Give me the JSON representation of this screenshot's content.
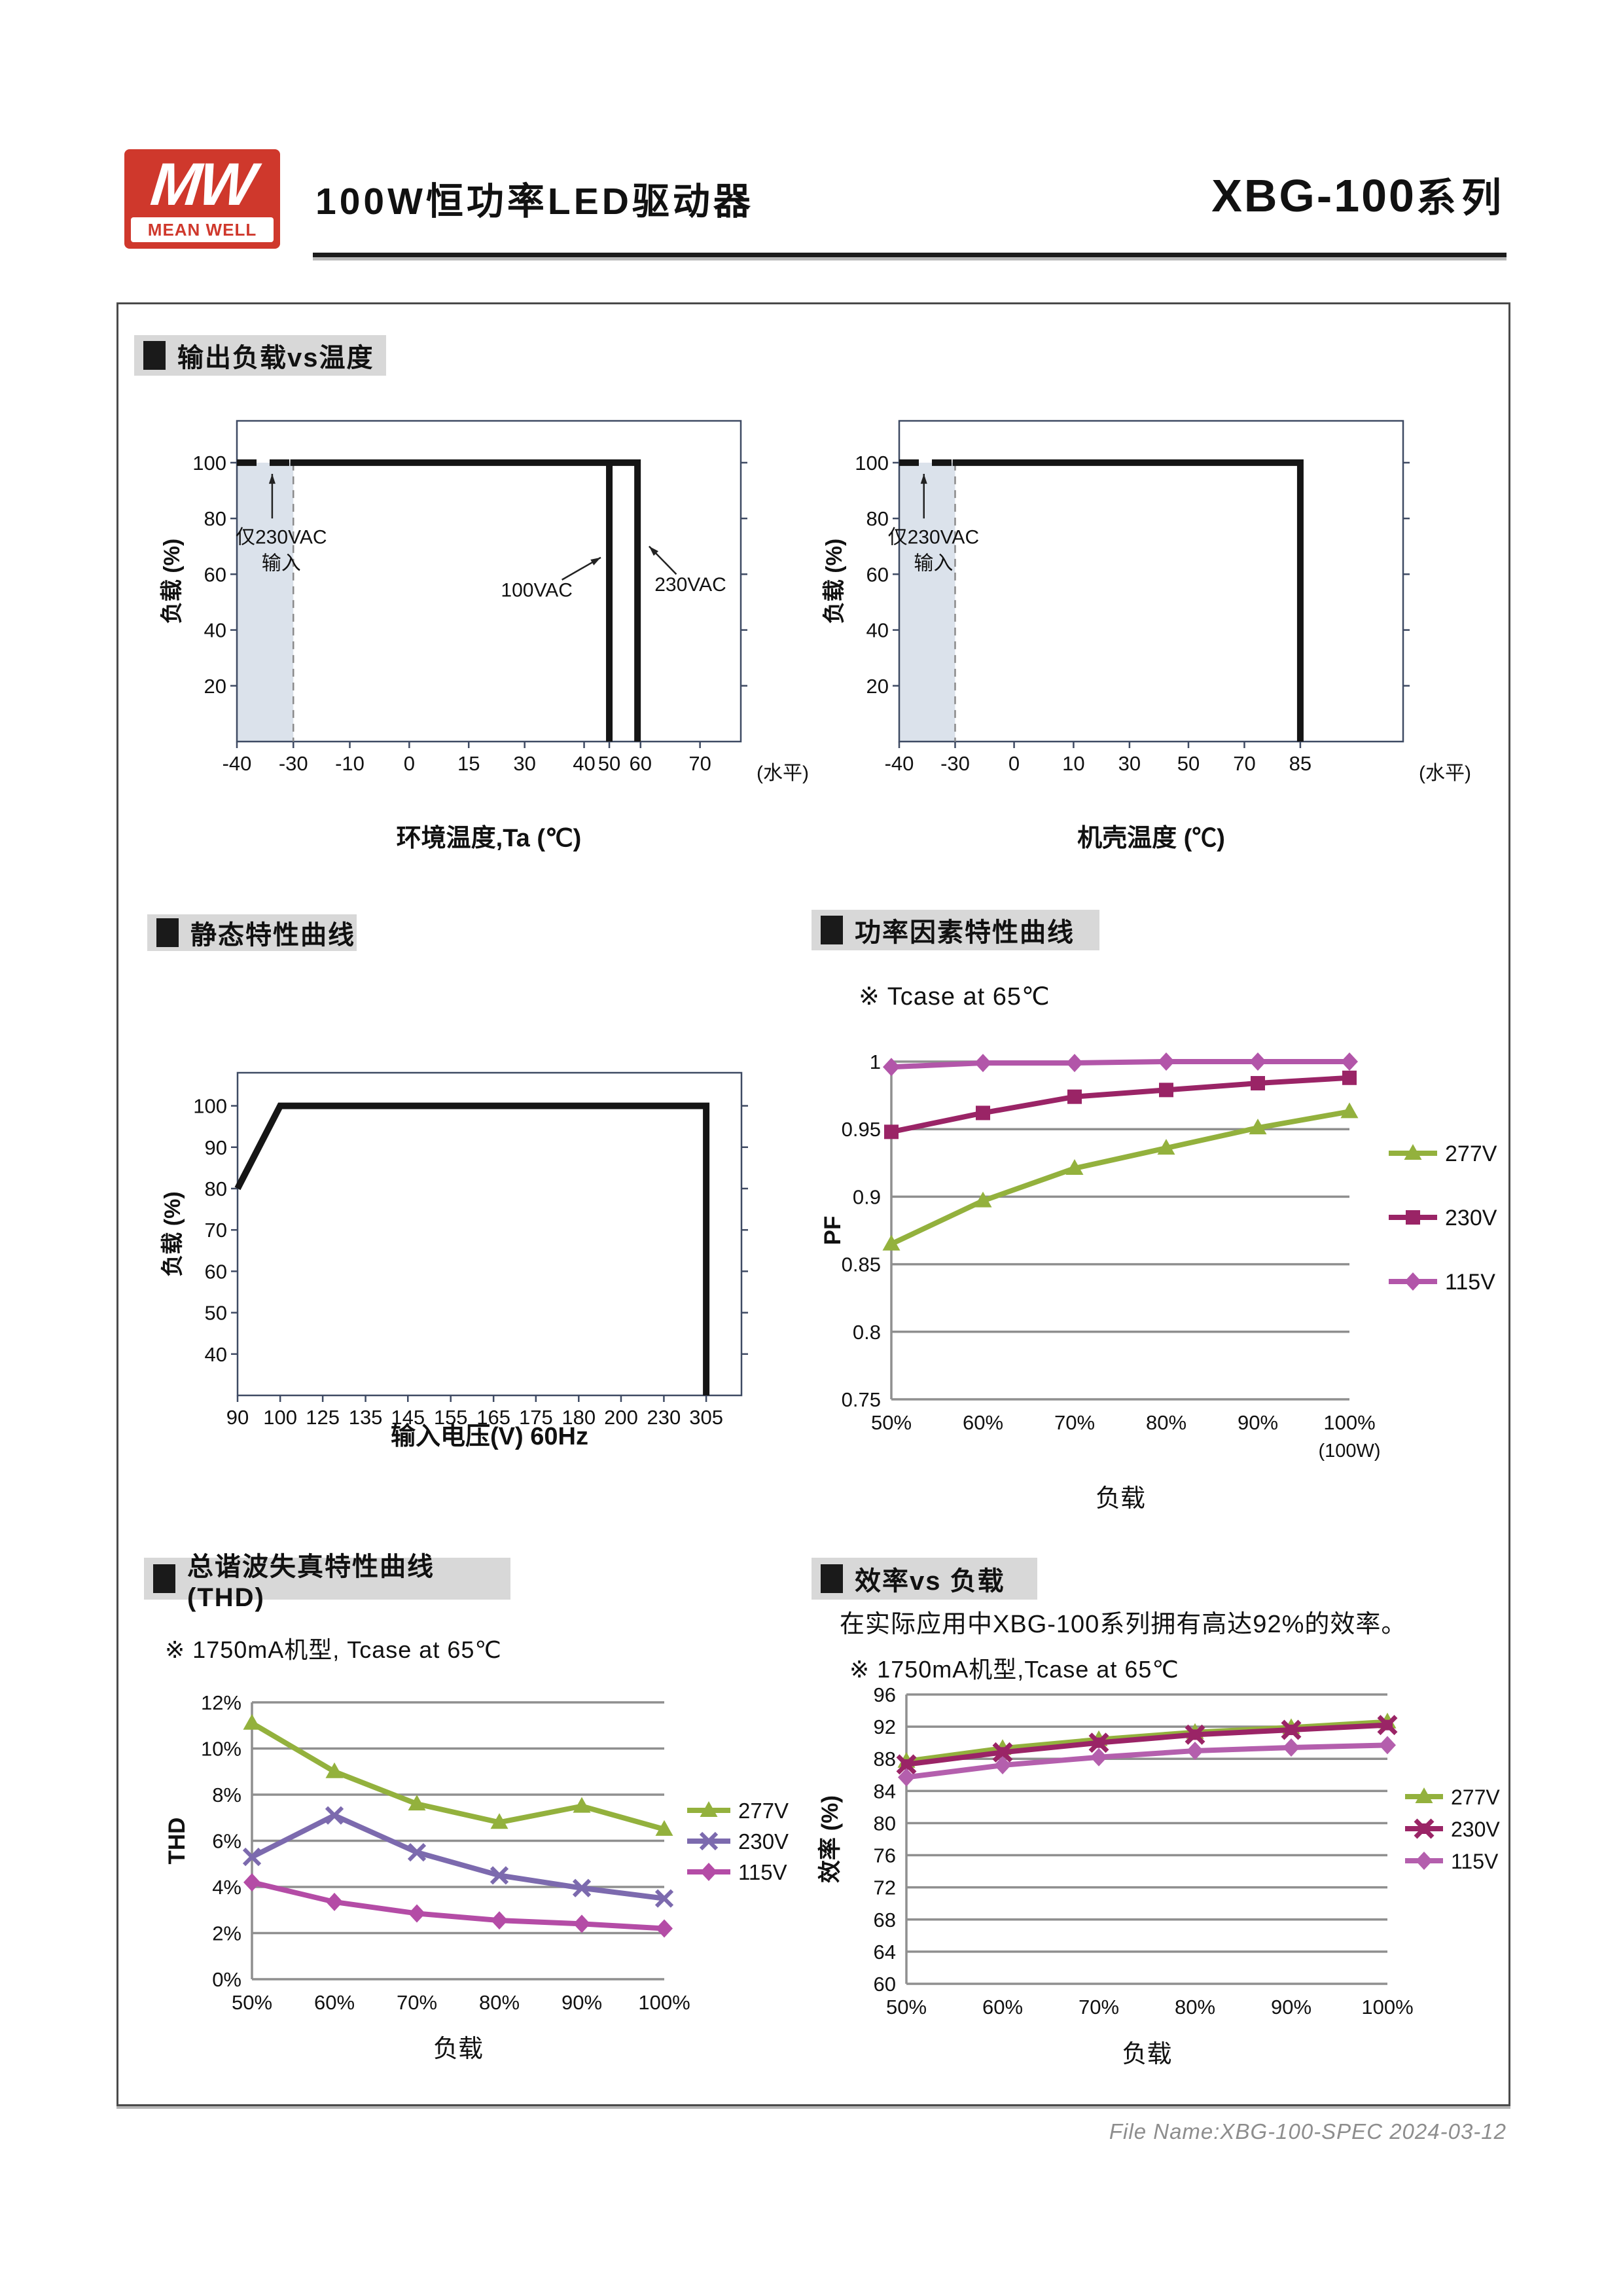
{
  "header": {
    "logo_mw": "MW",
    "logo_brand": "MEAN WELL",
    "title": "100W恒功率LED驱动器",
    "series": "XBG-100",
    "series_suffix": "系列"
  },
  "sections": [
    {
      "label": "输出负载vs温度"
    },
    {
      "label": "静态特性曲线"
    },
    {
      "label": "功率因素特性曲线"
    },
    {
      "label": "总谐波失真特性曲线(THD)"
    },
    {
      "label": "效率vs 负载"
    }
  ],
  "notes": {
    "pf": "※ Tcase at 65℃",
    "thd": "※ 1750mA机型, Tcase at 65℃",
    "eff_intro": "在实际应用中XBG-100系列拥有高达92%的效率。",
    "eff": "※ 1750mA机型,Tcase at 65℃"
  },
  "footer": {
    "file_name": "File Name:XBG-100-SPEC 2024-03-12"
  },
  "chart_data": [
    {
      "id": "load-vs-ambient-temperature",
      "type": "line",
      "kind": "derating",
      "xlabel": "环境温度,Ta (℃)",
      "ylabel": "负载 (%)",
      "axis_note": "(水平)",
      "ylim": [
        0,
        115
      ],
      "yticks": [
        20,
        40,
        60,
        80,
        100
      ],
      "xticks": [
        {
          "label": "-40",
          "pos": 0
        },
        {
          "label": "-30",
          "pos": 0.112
        },
        {
          "label": "-10",
          "pos": 0.224
        },
        {
          "label": "0",
          "pos": 0.342
        },
        {
          "label": "15",
          "pos": 0.46
        },
        {
          "label": "30",
          "pos": 0.571
        },
        {
          "label": "40",
          "pos": 0.689
        },
        {
          "label": "50",
          "pos": 0.739
        },
        {
          "label": "60",
          "pos": 0.801
        },
        {
          "label": "70",
          "pos": 0.919
        }
      ],
      "shade": [
        0,
        0.112
      ],
      "dash_vline": 0.112,
      "segments": [
        {
          "dash": true,
          "pts": [
            [
              0,
              100
            ],
            [
              0.112,
              100
            ]
          ]
        },
        {
          "dash": false,
          "pts": [
            [
              0.106,
              100
            ],
            [
              0.795,
              100
            ],
            [
              0.795,
              0
            ]
          ]
        },
        {
          "dash": false,
          "pts": [
            [
              0.739,
              100
            ],
            [
              0.739,
              0
            ]
          ]
        }
      ],
      "annotations": [
        {
          "lines": [
            "仅230VAC",
            "输入"
          ],
          "fx": 0.088,
          "fy": 71,
          "arrow": {
            "from": [
              0.07,
              80
            ],
            "to": [
              0.07,
              96
            ]
          }
        },
        {
          "lines": [
            "100VAC"
          ],
          "fx": 0.595,
          "fy": 52,
          "arrow": {
            "from": [
              0.645,
              58
            ],
            "to": [
              0.722,
              66
            ]
          }
        },
        {
          "lines": [
            "230VAC"
          ],
          "fx": 0.9,
          "fy": 54,
          "arrow": {
            "from": [
              0.872,
              60
            ],
            "to": [
              0.818,
              70
            ]
          }
        }
      ],
      "colors": {
        "line": "#151515",
        "frame": "#3e4a63",
        "shade": "#dbe2eb"
      }
    },
    {
      "id": "load-vs-case-temperature",
      "type": "line",
      "kind": "derating",
      "xlabel": "机壳温度 (℃)",
      "ylabel": "负载 (%)",
      "axis_note": "(水平)",
      "ylim": [
        0,
        115
      ],
      "yticks": [
        20,
        40,
        60,
        80,
        100
      ],
      "xticks": [
        {
          "label": "-40",
          "pos": 0
        },
        {
          "label": "-30",
          "pos": 0.111
        },
        {
          "label": "0",
          "pos": 0.228
        },
        {
          "label": "10",
          "pos": 0.346
        },
        {
          "label": "30",
          "pos": 0.457
        },
        {
          "label": "50",
          "pos": 0.574
        },
        {
          "label": "70",
          "pos": 0.685
        },
        {
          "label": "85",
          "pos": 0.796
        }
      ],
      "shade": [
        0,
        0.111
      ],
      "dash_vline": 0.111,
      "segments": [
        {
          "dash": true,
          "pts": [
            [
              0,
              100
            ],
            [
              0.111,
              100
            ]
          ]
        },
        {
          "dash": false,
          "pts": [
            [
              0.106,
              100
            ],
            [
              0.796,
              100
            ],
            [
              0.796,
              0
            ]
          ]
        }
      ],
      "annotations": [
        {
          "lines": [
            "仅230VAC",
            "输入"
          ],
          "fx": 0.068,
          "fy": 71,
          "arrow": {
            "from": [
              0.049,
              80
            ],
            "to": [
              0.049,
              96
            ]
          }
        }
      ],
      "colors": {
        "line": "#151515",
        "frame": "#3e4a63",
        "shade": "#dbe2eb"
      }
    },
    {
      "id": "static-characteristic",
      "type": "line",
      "kind": "derating",
      "xlabel": "输入电压(V) 60Hz",
      "ylabel": "负载 (%)",
      "ylim": [
        30,
        108
      ],
      "yticks": [
        40,
        50,
        60,
        70,
        80,
        90,
        100
      ],
      "xticks": [
        {
          "label": "90",
          "pos": 0
        },
        {
          "label": "100",
          "pos": 0.0846
        },
        {
          "label": "125",
          "pos": 0.169
        },
        {
          "label": "135",
          "pos": 0.254
        },
        {
          "label": "145",
          "pos": 0.338
        },
        {
          "label": "155",
          "pos": 0.423
        },
        {
          "label": "165",
          "pos": 0.508
        },
        {
          "label": "175",
          "pos": 0.592
        },
        {
          "label": "180",
          "pos": 0.677
        },
        {
          "label": "200",
          "pos": 0.761
        },
        {
          "label": "230",
          "pos": 0.846
        },
        {
          "label": "305",
          "pos": 0.93
        }
      ],
      "segments": [
        {
          "dash": false,
          "pts": [
            [
              0,
              80
            ],
            [
              0.0846,
              100
            ],
            [
              0.93,
              100
            ],
            [
              0.93,
              30
            ]
          ]
        }
      ],
      "annotations": [],
      "colors": {
        "line": "#151515",
        "frame": "#3e4a63",
        "shade": "#dbe2eb"
      }
    },
    {
      "id": "power-factor-vs-load",
      "type": "line",
      "kind": "series",
      "xlabel": "负载",
      "ylabel": "PF",
      "categories": [
        "50%",
        "60%",
        "70%",
        "80%",
        "90%",
        "100%"
      ],
      "cat_note": {
        "index": 5,
        "text": "(100W)"
      },
      "ylim": [
        0.75,
        1.0
      ],
      "yticks": [
        0.75,
        0.8,
        0.85,
        0.9,
        0.95,
        1
      ],
      "ytick_labels": [
        "0.75",
        "0.8",
        "0.85",
        "0.9",
        "0.95",
        "1"
      ],
      "series": [
        {
          "name": "277V",
          "marker": "triangle",
          "color": "#93B13D",
          "values": [
            0.865,
            0.897,
            0.921,
            0.936,
            0.951,
            0.963
          ]
        },
        {
          "name": "230V",
          "marker": "square",
          "color": "#9A2466",
          "values": [
            0.948,
            0.962,
            0.974,
            0.979,
            0.984,
            0.988
          ]
        },
        {
          "name": "115V",
          "marker": "diamond",
          "color": "#B256A9",
          "values": [
            0.996,
            0.999,
            0.999,
            1,
            1,
            1
          ]
        }
      ],
      "legend_position": "right"
    },
    {
      "id": "thd-vs-load",
      "type": "line",
      "kind": "series",
      "xlabel": "负载",
      "ylabel": "THD",
      "categories": [
        "50%",
        "60%",
        "70%",
        "80%",
        "90%",
        "100%"
      ],
      "ylim": [
        0,
        12
      ],
      "yticks": [
        0,
        2,
        4,
        6,
        8,
        10,
        12
      ],
      "ytick_labels": [
        "0%",
        "2%",
        "4%",
        "6%",
        "8%",
        "10%",
        "12%"
      ],
      "series": [
        {
          "name": "277V",
          "marker": "triangle",
          "color": "#93B13D",
          "values": [
            11.1,
            9.0,
            7.6,
            6.8,
            7.5,
            6.5
          ]
        },
        {
          "name": "230V",
          "marker": "x",
          "color": "#7C6AAE",
          "values": [
            5.3,
            7.1,
            5.5,
            4.5,
            3.95,
            3.5
          ]
        },
        {
          "name": "115V",
          "marker": "diamond",
          "color": "#B44CA6",
          "values": [
            4.2,
            3.35,
            2.85,
            2.55,
            2.4,
            2.2
          ]
        }
      ],
      "legend_position": "right"
    },
    {
      "id": "efficiency-vs-load",
      "type": "line",
      "kind": "series",
      "xlabel": "负载",
      "ylabel": "效率 (%)",
      "categories": [
        "50%",
        "60%",
        "70%",
        "80%",
        "90%",
        "100%"
      ],
      "ylim": [
        60,
        96
      ],
      "yticks": [
        60,
        64,
        68,
        72,
        76,
        80,
        84,
        88,
        92,
        96
      ],
      "ytick_labels": [
        "60",
        "64",
        "68",
        "72",
        "76",
        "80",
        "84",
        "88",
        "92",
        "96"
      ],
      "series": [
        {
          "name": "277V",
          "marker": "triangle",
          "color": "#93B13D",
          "values": [
            87.7,
            89.3,
            90.4,
            91.3,
            91.9,
            92.6
          ]
        },
        {
          "name": "230V",
          "marker": "xstar",
          "color": "#9A2466",
          "values": [
            87.3,
            88.8,
            90.0,
            91.0,
            91.6,
            92.2
          ]
        },
        {
          "name": "115V",
          "marker": "diamond",
          "color": "#B45FAD",
          "values": [
            85.7,
            87.2,
            88.2,
            89.0,
            89.4,
            89.7
          ]
        }
      ],
      "legend_position": "right"
    }
  ]
}
